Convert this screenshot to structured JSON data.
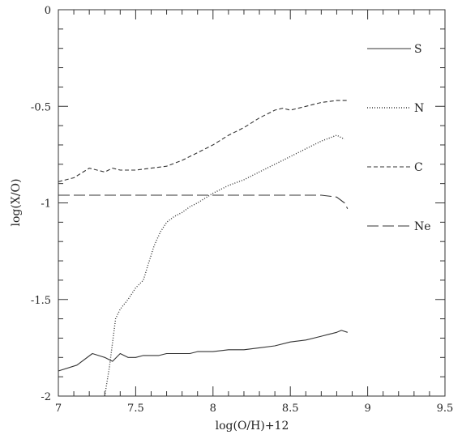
{
  "chart_data": {
    "type": "line",
    "xlabel": "log(O/H)+12",
    "ylabel": "log(X/O)",
    "xlim": [
      7,
      9.5
    ],
    "ylim": [
      -2,
      0
    ],
    "xticks": [
      "7",
      "7.5",
      "8",
      "8.5",
      "9",
      "9.5"
    ],
    "yticks": [
      "0",
      "-0.5",
      "-1",
      "-1.5",
      "-2"
    ],
    "grid": false,
    "legend_position": "top-right",
    "series": [
      {
        "name": "S",
        "style": "solid",
        "color": "#333333",
        "x": [
          7.0,
          7.12,
          7.22,
          7.3,
          7.35,
          7.4,
          7.45,
          7.5,
          7.55,
          7.6,
          7.65,
          7.7,
          7.75,
          7.8,
          7.85,
          7.9,
          8.0,
          8.1,
          8.2,
          8.3,
          8.4,
          8.5,
          8.6,
          8.7,
          8.75,
          8.8,
          8.83,
          8.87
        ],
        "y": [
          -1.87,
          -1.84,
          -1.78,
          -1.8,
          -1.82,
          -1.78,
          -1.8,
          -1.8,
          -1.79,
          -1.79,
          -1.79,
          -1.78,
          -1.78,
          -1.78,
          -1.78,
          -1.77,
          -1.77,
          -1.76,
          -1.76,
          -1.75,
          -1.74,
          -1.72,
          -1.71,
          -1.69,
          -1.68,
          -1.67,
          -1.66,
          -1.67
        ]
      },
      {
        "name": "N",
        "style": "dotted",
        "color": "#333333",
        "x": [
          7.3,
          7.33,
          7.37,
          7.4,
          7.45,
          7.5,
          7.55,
          7.58,
          7.62,
          7.66,
          7.7,
          7.75,
          7.8,
          7.85,
          7.9,
          8.0,
          8.1,
          8.2,
          8.3,
          8.4,
          8.5,
          8.6,
          8.7,
          8.8,
          8.85
        ],
        "y": [
          -2.0,
          -1.85,
          -1.6,
          -1.55,
          -1.5,
          -1.44,
          -1.4,
          -1.32,
          -1.22,
          -1.15,
          -1.1,
          -1.07,
          -1.05,
          -1.02,
          -1.0,
          -0.95,
          -0.91,
          -0.88,
          -0.84,
          -0.8,
          -0.76,
          -0.72,
          -0.68,
          -0.65,
          -0.67
        ]
      },
      {
        "name": "C",
        "style": "dashed",
        "color": "#333333",
        "x": [
          7.0,
          7.1,
          7.2,
          7.25,
          7.3,
          7.35,
          7.4,
          7.5,
          7.6,
          7.7,
          7.8,
          7.9,
          8.0,
          8.1,
          8.2,
          8.3,
          8.4,
          8.45,
          8.5,
          8.6,
          8.7,
          8.8,
          8.87
        ],
        "y": [
          -0.89,
          -0.87,
          -0.82,
          -0.83,
          -0.84,
          -0.82,
          -0.83,
          -0.83,
          -0.82,
          -0.81,
          -0.78,
          -0.74,
          -0.7,
          -0.65,
          -0.61,
          -0.56,
          -0.52,
          -0.51,
          -0.52,
          -0.5,
          -0.48,
          -0.47,
          -0.47
        ]
      },
      {
        "name": "Ne",
        "style": "long-dashed",
        "color": "#333333",
        "x": [
          7.0,
          7.5,
          8.0,
          8.5,
          8.7,
          8.8,
          8.85,
          8.87
        ],
        "y": [
          -0.96,
          -0.96,
          -0.96,
          -0.96,
          -0.96,
          -0.97,
          -1.0,
          -1.03
        ]
      }
    ]
  }
}
